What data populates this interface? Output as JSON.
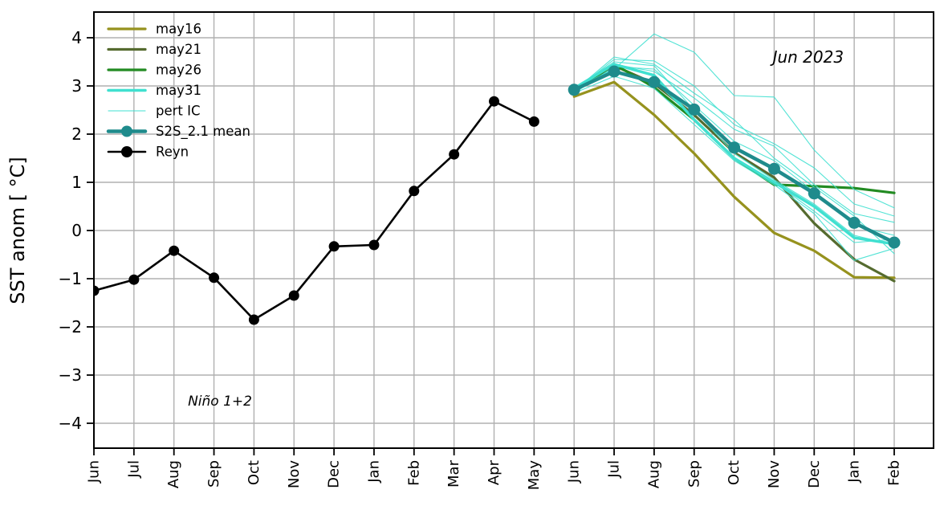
{
  "chart_data": {
    "type": "line",
    "title": "",
    "xlabel": "",
    "ylabel": "SST anom [ °C]",
    "region_label": "Niño 1+2",
    "forecast_start_label": "Jun 2023",
    "ylim": [
      -4.5,
      4.5
    ],
    "grid": true,
    "legend_position": "upper-left",
    "x_tick_labels": [
      "Jun",
      "Jul",
      "Aug",
      "Sep",
      "Oct",
      "Nov",
      "Dec",
      "Jan",
      "Feb",
      "Mar",
      "Apr",
      "May",
      "Jun",
      "Jul",
      "Aug",
      "Sep",
      "Oct",
      "Nov",
      "Dec",
      "Jan",
      "Feb"
    ],
    "ytick_values": [
      4,
      3,
      2,
      1,
      0,
      -1,
      -2,
      -3,
      -4
    ],
    "ytick_labels": [
      "4",
      "3",
      "2",
      "1",
      "0",
      "−1",
      "−2",
      "−3",
      "−4"
    ],
    "annotations": [
      {
        "id": "nino-region",
        "text": "Niño 1+2",
        "x_index": 3.15,
        "value": -3.55,
        "size": 17
      },
      {
        "id": "init-date",
        "text": "Jun 2023",
        "x_index": 17.85,
        "value": 3.6,
        "size": 20
      }
    ],
    "series": [
      {
        "name": "may16",
        "label": "may16",
        "color": "#96921e",
        "line_width": 3.2,
        "marker": false,
        "start_month_index": 12,
        "values": [
          2.78,
          3.08,
          2.4,
          1.6,
          0.7,
          -0.05,
          -0.42,
          -0.97,
          -0.98
        ]
      },
      {
        "name": "may21",
        "label": "may21",
        "color": "#556b2f",
        "line_width": 3.2,
        "marker": false,
        "start_month_index": 12,
        "values": [
          2.88,
          3.42,
          3.05,
          2.4,
          1.62,
          1.1,
          0.15,
          -0.6,
          -1.05
        ]
      },
      {
        "name": "may26",
        "label": "may26",
        "color": "#228b22",
        "line_width": 3.2,
        "marker": false,
        "start_month_index": 12,
        "values": [
          2.9,
          3.45,
          2.97,
          2.3,
          1.5,
          0.95,
          0.92,
          0.88,
          0.78
        ]
      },
      {
        "name": "may31",
        "label": "may31",
        "color": "#40e0d0",
        "line_width": 3.5,
        "marker": false,
        "start_month_index": 12,
        "values": [
          2.95,
          3.45,
          3.22,
          2.3,
          1.5,
          1.0,
          0.5,
          -0.15,
          -0.28
        ]
      },
      {
        "name": "pertIC",
        "label": "pert IC",
        "color": "#40e0d0",
        "line_width": 1.1,
        "marker": false,
        "start_month_index": 12,
        "members": [
          [
            2.95,
            3.35,
            4.08,
            3.7,
            2.8,
            2.77,
            1.67,
            0.85,
            0.47
          ],
          [
            2.9,
            3.55,
            3.52,
            3.0,
            2.2,
            1.8,
            1.3,
            0.55,
            0.3
          ],
          [
            2.92,
            3.45,
            3.3,
            2.75,
            2.1,
            1.75,
            0.95,
            0.35,
            0.17
          ],
          [
            2.85,
            3.4,
            3.35,
            2.6,
            1.85,
            1.45,
            0.8,
            0.1,
            -0.1
          ],
          [
            2.95,
            3.5,
            3.42,
            2.5,
            1.6,
            1.05,
            0.55,
            -0.1,
            -0.3
          ],
          [
            2.9,
            3.3,
            3.1,
            2.32,
            1.5,
            1.0,
            0.4,
            -0.25,
            -0.18
          ],
          [
            2.85,
            3.2,
            2.95,
            2.2,
            1.45,
            0.95,
            0.35,
            -0.62,
            -0.37
          ],
          [
            2.9,
            3.6,
            3.45,
            2.85,
            2.3,
            1.5,
            0.9,
            0.3,
            -0.48
          ]
        ]
      },
      {
        "name": "s2s_mean",
        "label": "S2S_2.1 mean",
        "color": "#1f8b8c",
        "line_width": 4.5,
        "marker": true,
        "marker_radius": 7.5,
        "start_month_index": 12,
        "values": [
          2.92,
          3.3,
          3.08,
          2.51,
          1.72,
          1.28,
          0.77,
          0.16,
          -0.25
        ]
      },
      {
        "name": "reyn",
        "label": "Reyn",
        "color": "#000000",
        "line_width": 2.6,
        "marker": true,
        "marker_radius": 6.5,
        "start_month_index": 0,
        "values": [
          -1.25,
          -1.02,
          -0.42,
          -0.98,
          -1.85,
          -1.35,
          -0.33,
          -0.3,
          0.82,
          1.58,
          2.68,
          2.26
        ]
      }
    ],
    "legend_entries": [
      "may16",
      "may21",
      "may26",
      "may31",
      "pertIC",
      "s2s_mean",
      "reyn"
    ]
  }
}
